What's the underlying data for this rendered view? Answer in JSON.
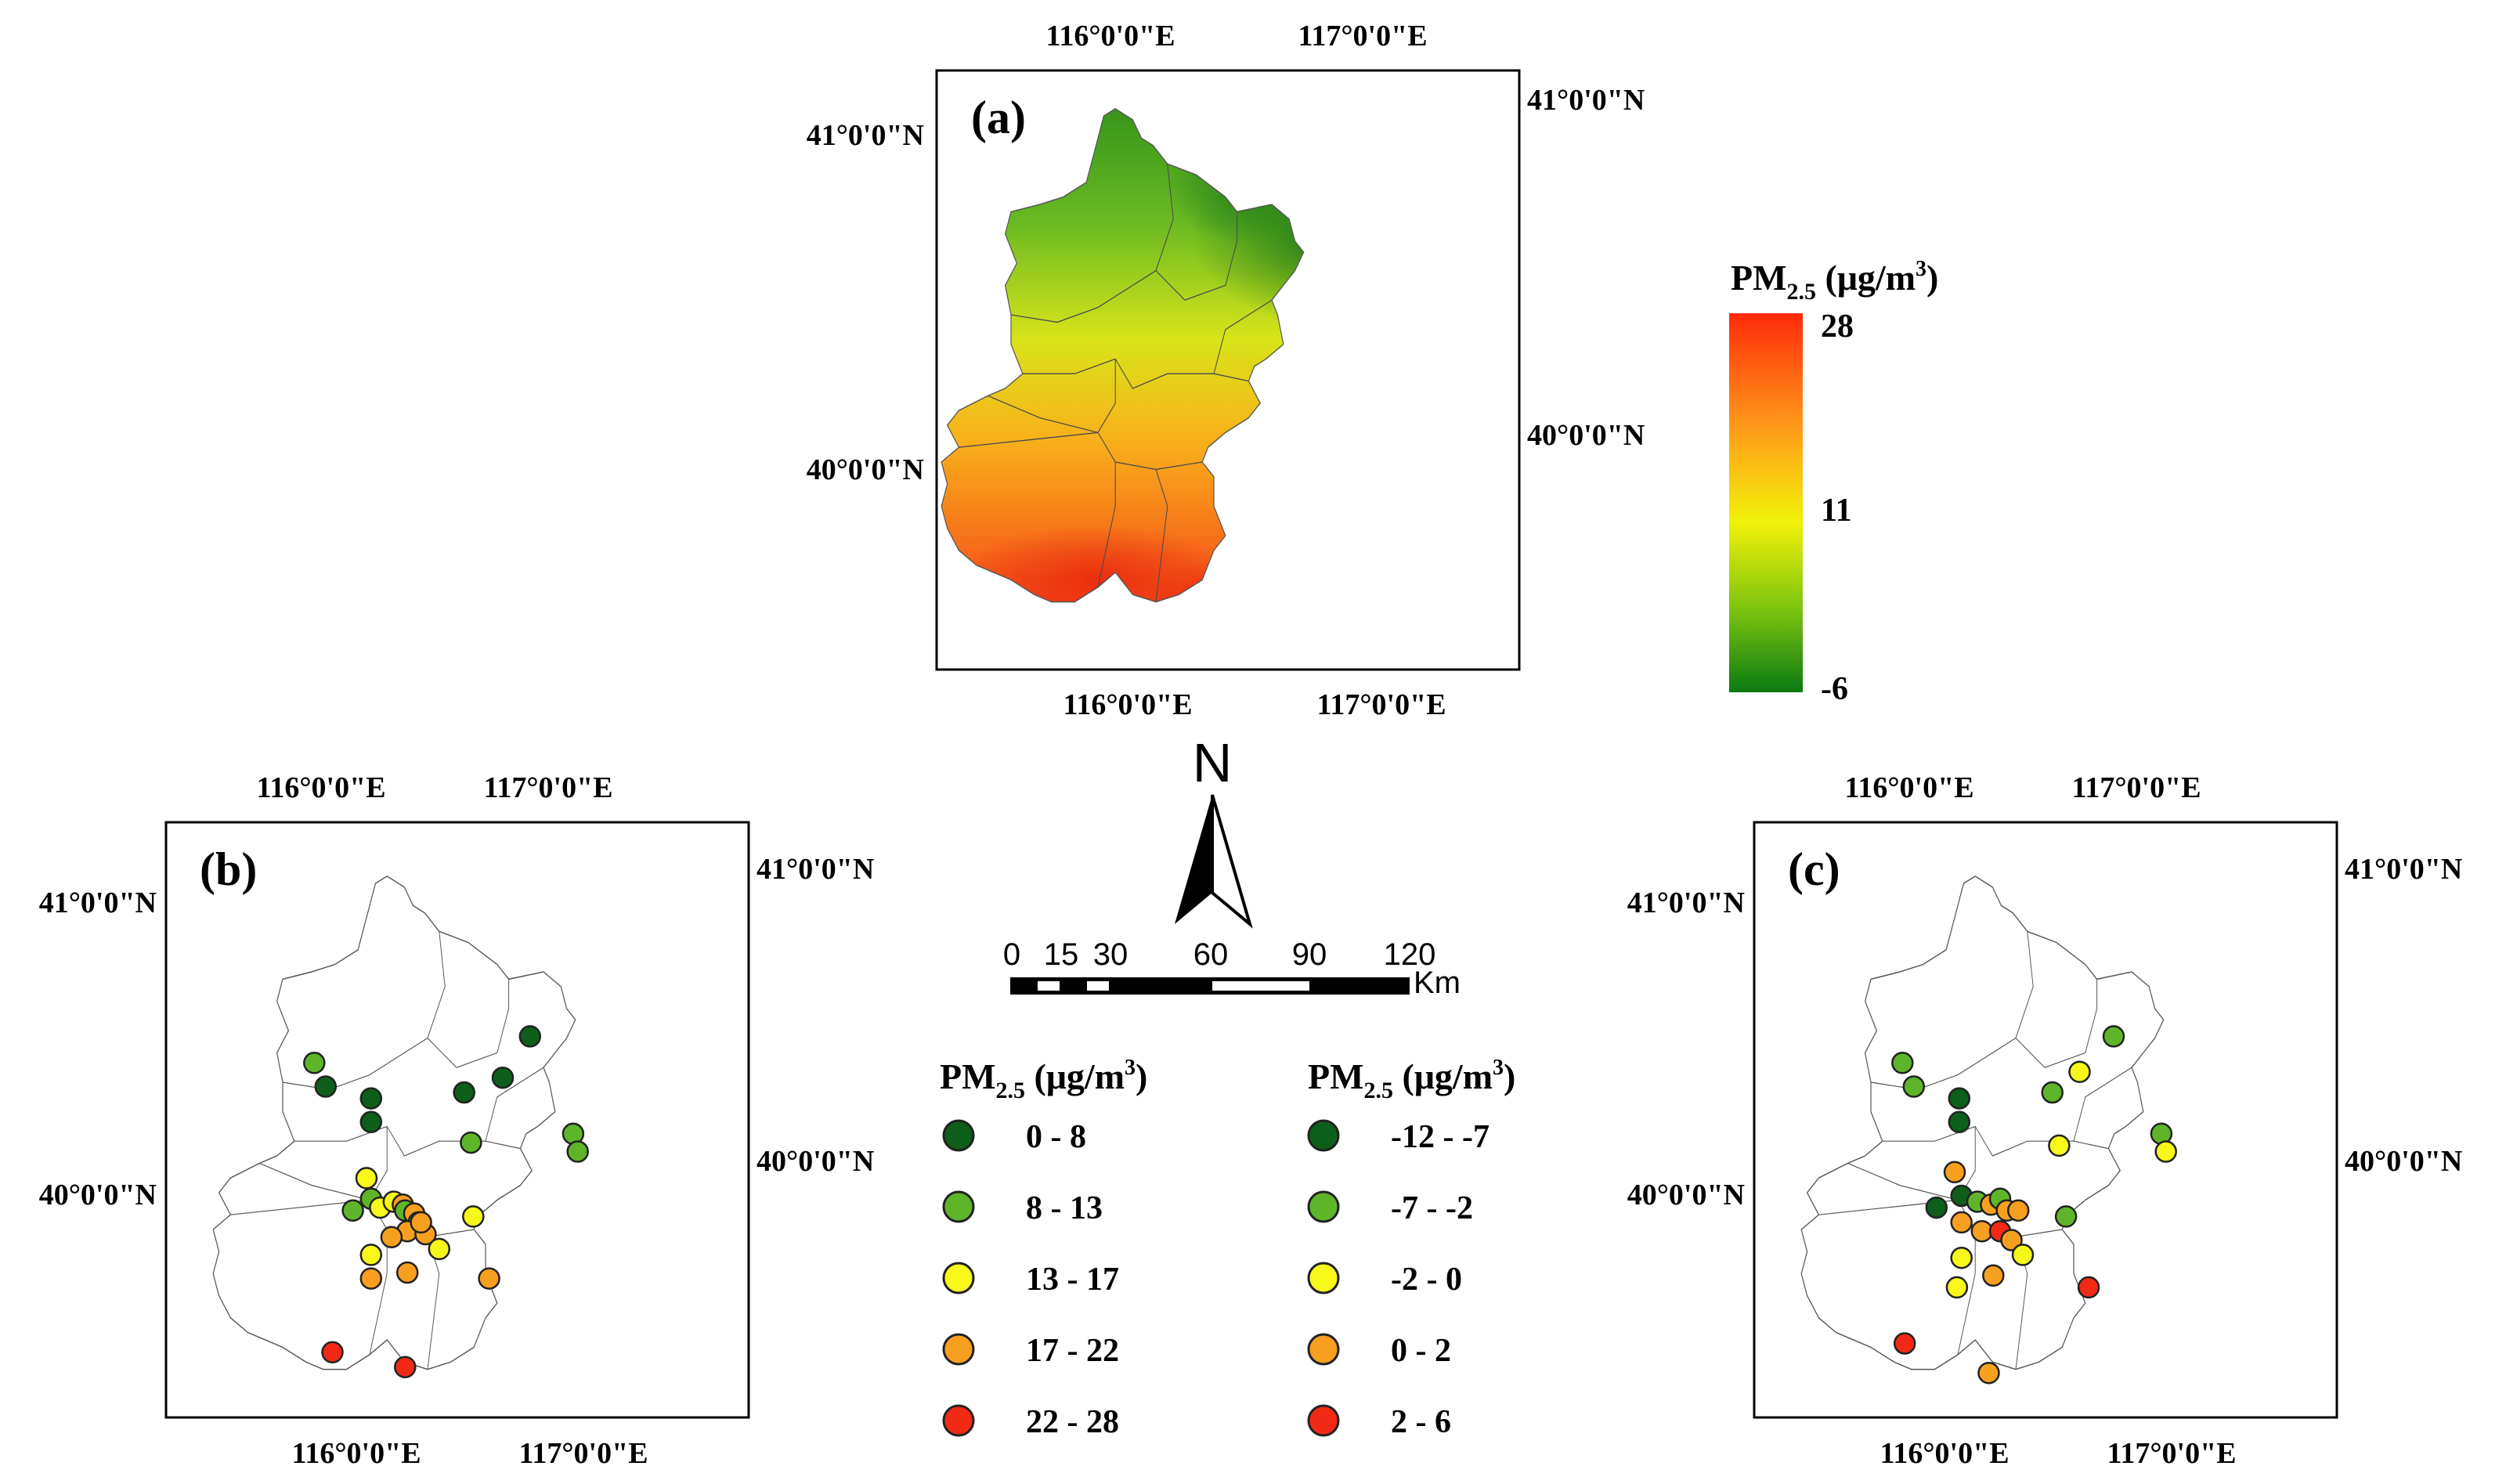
{
  "lon_labels": [
    "116°0'0\"E",
    "117°0'0\"E"
  ],
  "lat_labels": [
    "41°0'0\"N",
    "40°0'0\"N"
  ],
  "panels": {
    "a": {
      "letter": "(a)"
    },
    "b": {
      "letter": "(b)"
    },
    "c": {
      "letter": "(c)"
    }
  },
  "colorbar": {
    "title": "PM",
    "sub": "2.5",
    "unit_open": " (μg/m",
    "unit_sup": "3",
    "unit_close": ")",
    "max_label": "28",
    "mid_label": "11",
    "min_label": "-6",
    "colors": [
      "#ff2a0a",
      "#ff9a1a",
      "#f2f20a",
      "#7dc40e",
      "#0a7a12"
    ]
  },
  "north_arrow": {
    "label": "N"
  },
  "scale_bar": {
    "ticks": [
      "0",
      "15",
      "30",
      "60",
      "90",
      "120"
    ],
    "unit": "Km"
  },
  "legend_b": {
    "title": "PM",
    "sub": "2.5",
    "unit_open": " (μg/m",
    "unit_sup": "3",
    "unit_close": ")",
    "classes": [
      {
        "label": "0 - 8",
        "color": "#0d5e1a"
      },
      {
        "label": "8 - 13",
        "color": "#5fb52a"
      },
      {
        "label": "13 - 17",
        "color": "#f7f71a"
      },
      {
        "label": "17 - 22",
        "color": "#f7a020"
      },
      {
        "label": "22 - 28",
        "color": "#f22a15"
      }
    ]
  },
  "legend_c": {
    "title": "PM",
    "sub": "2.5",
    "unit_open": " (μg/m",
    "unit_sup": "3",
    "unit_close": ")",
    "classes": [
      {
        "label": "-12 - -7",
        "color": "#0d5e1a"
      },
      {
        "label": "-7 - -2",
        "color": "#5fb52a"
      },
      {
        "label": "-2 - 0",
        "color": "#f7f71a"
      },
      {
        "label": "0 - 2",
        "color": "#f7a020"
      },
      {
        "label": "2 - 6",
        "color": "#f22a15"
      }
    ]
  },
  "stations_b": [
    {
      "lon": 115.97,
      "lat": 40.45,
      "cls": 1
    },
    {
      "lon": 116.02,
      "lat": 40.37,
      "cls": 0
    },
    {
      "lon": 116.22,
      "lat": 40.33,
      "cls": 0
    },
    {
      "lon": 116.22,
      "lat": 40.25,
      "cls": 0
    },
    {
      "lon": 116.63,
      "lat": 40.35,
      "cls": 0
    },
    {
      "lon": 116.8,
      "lat": 40.4,
      "cls": 0
    },
    {
      "lon": 116.92,
      "lat": 40.54,
      "cls": 0
    },
    {
      "lon": 116.66,
      "lat": 40.18,
      "cls": 1
    },
    {
      "lon": 117.11,
      "lat": 40.21,
      "cls": 1
    },
    {
      "lon": 117.13,
      "lat": 40.15,
      "cls": 1
    },
    {
      "lon": 116.2,
      "lat": 40.06,
      "cls": 2
    },
    {
      "lon": 116.22,
      "lat": 39.99,
      "cls": 1
    },
    {
      "lon": 116.14,
      "lat": 39.95,
      "cls": 1
    },
    {
      "lon": 116.26,
      "lat": 39.96,
      "cls": 2
    },
    {
      "lon": 116.32,
      "lat": 39.98,
      "cls": 2
    },
    {
      "lon": 116.36,
      "lat": 39.97,
      "cls": 3
    },
    {
      "lon": 116.37,
      "lat": 39.95,
      "cls": 1
    },
    {
      "lon": 116.41,
      "lat": 39.94,
      "cls": 3
    },
    {
      "lon": 116.43,
      "lat": 39.91,
      "cls": 3
    },
    {
      "lon": 116.38,
      "lat": 39.88,
      "cls": 3
    },
    {
      "lon": 116.46,
      "lat": 39.87,
      "cls": 3
    },
    {
      "lon": 116.52,
      "lat": 39.82,
      "cls": 2
    },
    {
      "lon": 116.31,
      "lat": 39.86,
      "cls": 3
    },
    {
      "lon": 116.22,
      "lat": 39.8,
      "cls": 2
    },
    {
      "lon": 116.22,
      "lat": 39.72,
      "cls": 3
    },
    {
      "lon": 116.38,
      "lat": 39.74,
      "cls": 3
    },
    {
      "lon": 116.67,
      "lat": 39.93,
      "cls": 2
    },
    {
      "lon": 116.74,
      "lat": 39.72,
      "cls": 3
    },
    {
      "lon": 116.05,
      "lat": 39.47,
      "cls": 4
    },
    {
      "lon": 116.37,
      "lat": 39.42,
      "cls": 4
    },
    {
      "lon": 116.44,
      "lat": 39.91,
      "cls": 3
    }
  ],
  "stations_c": [
    {
      "lon": 115.97,
      "lat": 40.45,
      "cls": 1
    },
    {
      "lon": 116.02,
      "lat": 40.37,
      "cls": 1
    },
    {
      "lon": 116.22,
      "lat": 40.33,
      "cls": 0
    },
    {
      "lon": 116.22,
      "lat": 40.25,
      "cls": 0
    },
    {
      "lon": 116.63,
      "lat": 40.35,
      "cls": 1
    },
    {
      "lon": 116.75,
      "lat": 40.42,
      "cls": 2
    },
    {
      "lon": 116.9,
      "lat": 40.54,
      "cls": 1
    },
    {
      "lon": 116.66,
      "lat": 40.17,
      "cls": 2
    },
    {
      "lon": 117.11,
      "lat": 40.21,
      "cls": 1
    },
    {
      "lon": 117.13,
      "lat": 40.15,
      "cls": 2
    },
    {
      "lon": 116.2,
      "lat": 40.08,
      "cls": 3
    },
    {
      "lon": 116.23,
      "lat": 40.0,
      "cls": 0
    },
    {
      "lon": 116.12,
      "lat": 39.96,
      "cls": 0
    },
    {
      "lon": 116.3,
      "lat": 39.98,
      "cls": 1
    },
    {
      "lon": 116.36,
      "lat": 39.97,
      "cls": 3
    },
    {
      "lon": 116.4,
      "lat": 39.99,
      "cls": 1
    },
    {
      "lon": 116.43,
      "lat": 39.95,
      "cls": 3
    },
    {
      "lon": 116.48,
      "lat": 39.95,
      "cls": 3
    },
    {
      "lon": 116.23,
      "lat": 39.91,
      "cls": 3
    },
    {
      "lon": 116.32,
      "lat": 39.88,
      "cls": 3
    },
    {
      "lon": 116.4,
      "lat": 39.88,
      "cls": 4
    },
    {
      "lon": 116.45,
      "lat": 39.85,
      "cls": 3
    },
    {
      "lon": 116.5,
      "lat": 39.8,
      "cls": 2
    },
    {
      "lon": 116.23,
      "lat": 39.79,
      "cls": 2
    },
    {
      "lon": 116.21,
      "lat": 39.69,
      "cls": 2
    },
    {
      "lon": 116.37,
      "lat": 39.73,
      "cls": 3
    },
    {
      "lon": 116.69,
      "lat": 39.93,
      "cls": 1
    },
    {
      "lon": 116.79,
      "lat": 39.69,
      "cls": 4
    },
    {
      "lon": 115.98,
      "lat": 39.5,
      "cls": 4
    },
    {
      "lon": 116.35,
      "lat": 39.4,
      "cls": 3
    }
  ]
}
